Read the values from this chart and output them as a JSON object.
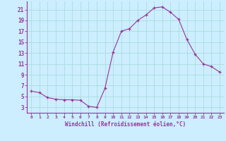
{
  "x": [
    0,
    1,
    2,
    3,
    4,
    5,
    6,
    7,
    8,
    9,
    10,
    11,
    12,
    13,
    14,
    15,
    16,
    17,
    18,
    19,
    20,
    21,
    22,
    23
  ],
  "y": [
    6.0,
    5.7,
    4.8,
    4.5,
    4.4,
    4.4,
    4.3,
    3.2,
    3.0,
    6.5,
    13.2,
    17.0,
    17.5,
    19.0,
    20.0,
    21.3,
    21.5,
    20.5,
    19.2,
    15.5,
    12.8,
    11.0,
    10.5,
    9.5
  ],
  "line_color": "#993399",
  "marker": "+",
  "marker_size": 3.5,
  "bg_color": "#cceeff",
  "grid_color": "#aadddd",
  "axis_color": "#993399",
  "xlabel": "Windchill (Refroidissement éolien,°C)",
  "xlim": [
    -0.5,
    23.5
  ],
  "ylim": [
    2,
    22.5
  ],
  "yticks": [
    3,
    5,
    7,
    9,
    11,
    13,
    15,
    17,
    19,
    21
  ],
  "xticks": [
    0,
    1,
    2,
    3,
    4,
    5,
    6,
    7,
    8,
    9,
    10,
    11,
    12,
    13,
    14,
    15,
    16,
    17,
    18,
    19,
    20,
    21,
    22,
    23
  ]
}
